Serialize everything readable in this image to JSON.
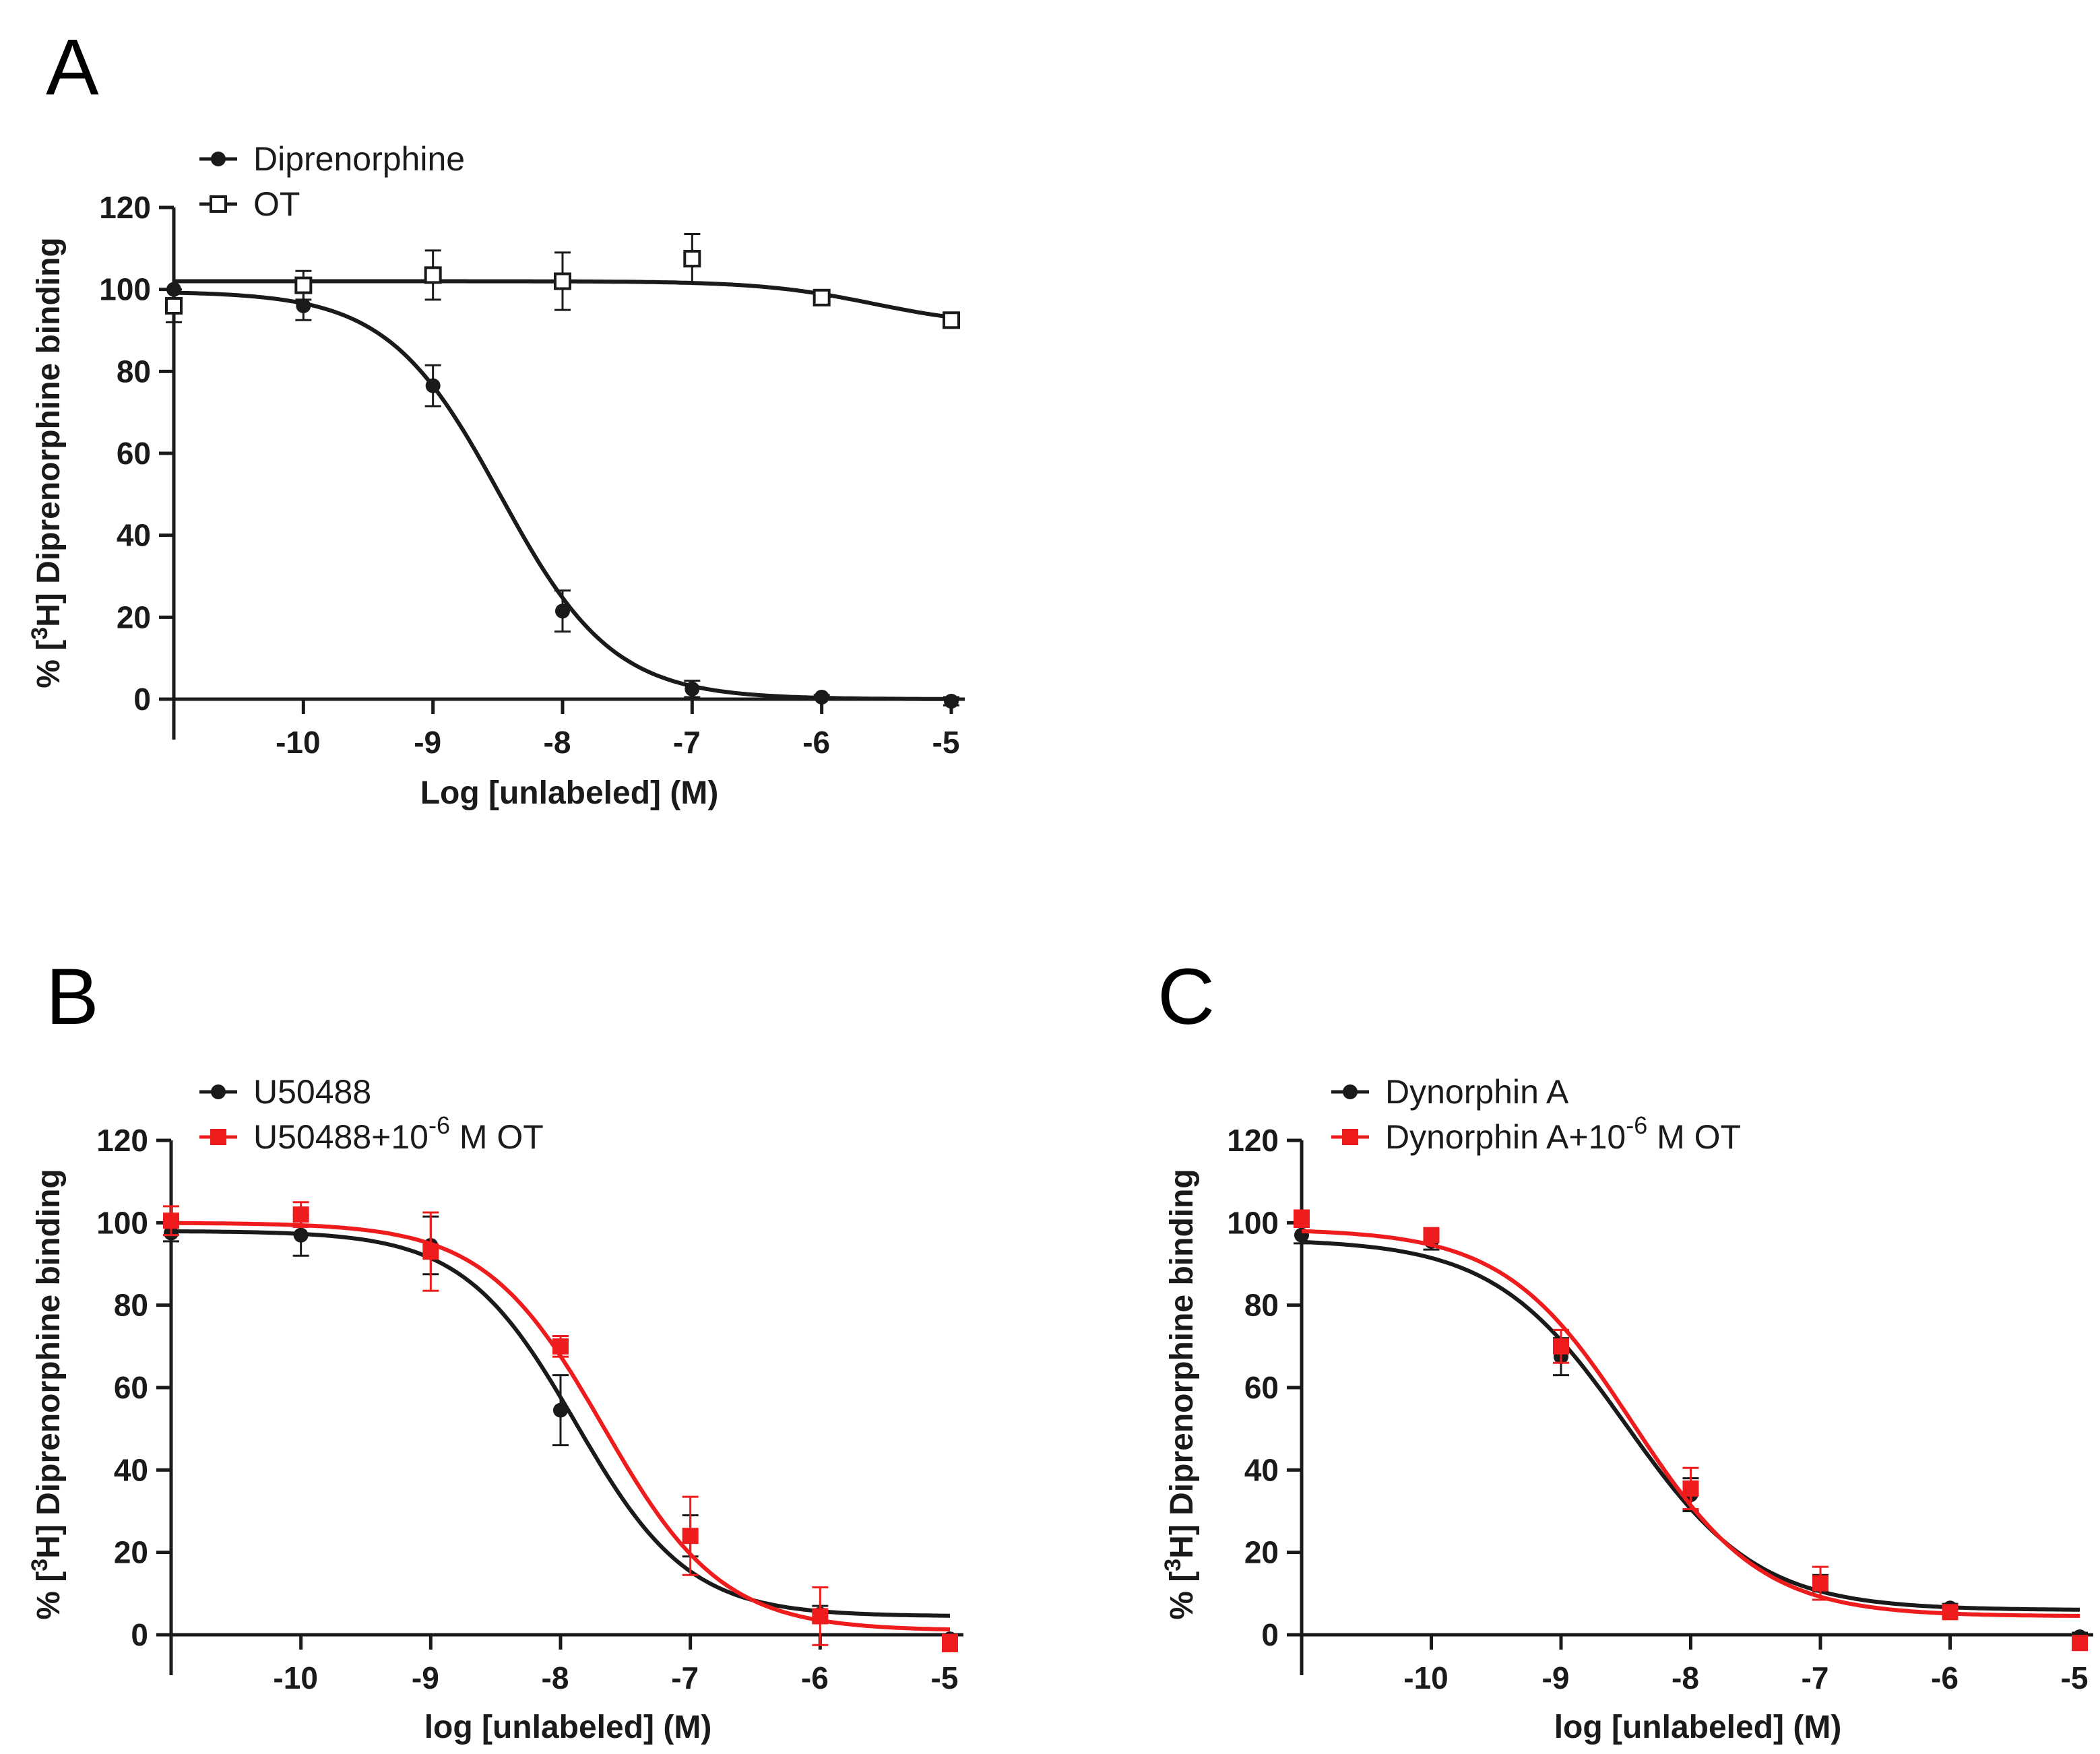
{
  "figure": {
    "panels": [
      "A",
      "B",
      "C"
    ]
  },
  "chart_data": [
    {
      "panel": "A",
      "type": "scatter",
      "fit": "sigmoidal dose-response curve",
      "xlabel": "Log [unlabeled] (M)",
      "ylabel": "% [³H] Diprenorphine binding",
      "xlim": [
        -11,
        -5
      ],
      "ylim": [
        0,
        120
      ],
      "xticks": [
        "-10",
        "-9",
        "-8",
        "-7",
        "-6",
        "-5"
      ],
      "yticks": [
        "0",
        "20",
        "40",
        "60",
        "80",
        "100",
        "120"
      ],
      "legend_position": "top-left",
      "series": [
        {
          "name": "Diprenorphine",
          "color": "#1a1a1a",
          "marker": "filled-circle",
          "x": [
            -11,
            -10,
            -9,
            -8,
            -7,
            -6,
            -5
          ],
          "y": [
            100,
            96,
            76.5,
            21.5,
            2.5,
            0.5,
            -0.5
          ],
          "err": [
            0,
            3.5,
            5,
            5,
            2,
            0.5,
            1
          ],
          "curve": {
            "bottom": 0,
            "top": 99.5,
            "logEC50": -8.48,
            "hill": -1
          }
        },
        {
          "name": "OT",
          "color": "#1a1a1a",
          "marker": "open-square",
          "x": [
            -11,
            -10,
            -9,
            -8,
            -7,
            -6,
            -5
          ],
          "y": [
            96,
            101,
            103.5,
            102,
            107.5,
            98,
            92.5
          ],
          "err": [
            4,
            3.5,
            6,
            7,
            6,
            0.5,
            0.5
          ],
          "curve": {
            "bottom": 91,
            "top": 102,
            "logEC50": -5.6,
            "hill": -1
          }
        }
      ]
    },
    {
      "panel": "B",
      "type": "scatter",
      "fit": "sigmoidal dose-response curve",
      "xlabel": "log [unlabeled] (M)",
      "ylabel": "% [³H] Diprenorphine binding",
      "xlim": [
        -11,
        -5
      ],
      "ylim": [
        0,
        120
      ],
      "xticks": [
        "-10",
        "-9",
        "-8",
        "-7",
        "-6",
        "-5"
      ],
      "yticks": [
        "0",
        "20",
        "40",
        "60",
        "80",
        "100",
        "120"
      ],
      "legend_position": "top-left",
      "series": [
        {
          "name": "U50488",
          "color": "#1a1a1a",
          "marker": "filled-circle",
          "x": [
            -11,
            -10,
            -9,
            -8,
            -7,
            -6,
            -5
          ],
          "y": [
            97.5,
            97,
            94.5,
            54.5,
            24,
            5,
            -1
          ],
          "err": [
            2,
            5,
            7,
            8.5,
            5,
            2,
            1
          ],
          "curve": {
            "bottom": 4.5,
            "top": 98,
            "logEC50": -7.88,
            "hill": -1
          }
        },
        {
          "name_prefix": "U50488+10",
          "name_exp": "-6",
          "name_suffix": " M OT",
          "color": "#ee1c1c",
          "marker": "filled-square",
          "x": [
            -11,
            -10,
            -9,
            -8,
            -7,
            -6,
            -5
          ],
          "y": [
            100.5,
            102,
            93,
            70,
            24,
            4.5,
            -2
          ],
          "err": [
            3.5,
            3,
            9.5,
            2.5,
            9.5,
            7,
            2
          ],
          "curve": {
            "bottom": 1,
            "top": 100,
            "logEC50": -7.67,
            "hill": -0.95
          }
        }
      ]
    },
    {
      "panel": "C",
      "type": "scatter",
      "fit": "sigmoidal dose-response curve",
      "xlabel": "log [unlabeled] (M)",
      "ylabel": "% [³H] Diprenorphine binding",
      "xlim": [
        -11,
        -5
      ],
      "ylim": [
        0,
        120
      ],
      "xticks": [
        "-10",
        "-9",
        "-8",
        "-7",
        "-6",
        "-5"
      ],
      "yticks": [
        "0",
        "20",
        "40",
        "60",
        "80",
        "100",
        "120"
      ],
      "legend_position": "top-left",
      "series": [
        {
          "name": "Dynorphin A",
          "color": "#1a1a1a",
          "marker": "filled-circle",
          "x": [
            -11,
            -10,
            -9,
            -8,
            -7,
            -6,
            -5
          ],
          "y": [
            97,
            95.5,
            67.5,
            34,
            12.5,
            6.5,
            -0.5
          ],
          "err": [
            2,
            2,
            4.5,
            4,
            2,
            1,
            1
          ],
          "curve": {
            "bottom": 6,
            "top": 96,
            "logEC50": -8.5,
            "hill": -0.85
          }
        },
        {
          "name_prefix": "Dynorphin A+10",
          "name_exp": "-6",
          "name_suffix": " M OT",
          "color": "#ee1c1c",
          "marker": "filled-square",
          "x": [
            -11,
            -10,
            -9,
            -8,
            -7,
            -6,
            -5
          ],
          "y": [
            101,
            97,
            70,
            35.5,
            12.5,
            5.5,
            -2
          ],
          "err": [
            2,
            1.5,
            4,
            5,
            4,
            1,
            1
          ],
          "curve": {
            "bottom": 4.5,
            "top": 98.5,
            "logEC50": -8.45,
            "hill": -0.88
          }
        }
      ]
    }
  ]
}
